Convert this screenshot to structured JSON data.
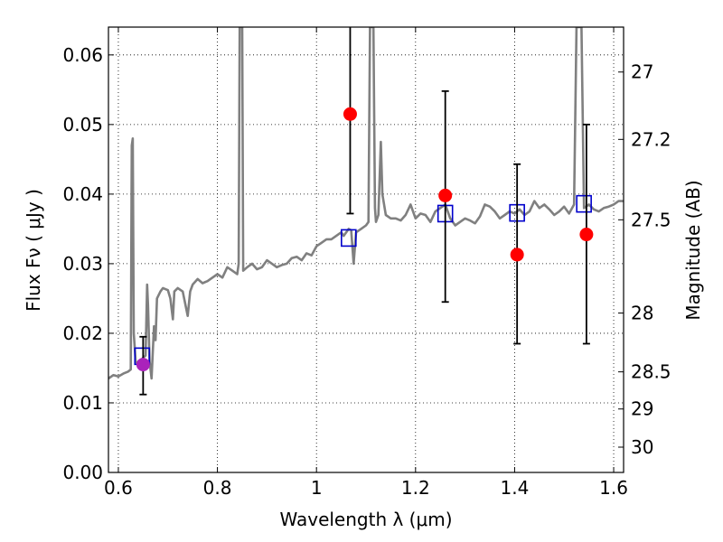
{
  "chart_data": {
    "type": "scatter",
    "xlabel": "Wavelength  λ (μm)",
    "ylabel": "Flux  Fν  ( μJy )",
    "ylabel_right": "Magnitude (AB)",
    "xlim": [
      0.58,
      1.62
    ],
    "ylim": [
      0.0,
      0.064
    ],
    "grid": true,
    "x_ticks": [
      {
        "value": 0.6,
        "label": "0.6"
      },
      {
        "value": 0.8,
        "label": "0.8"
      },
      {
        "value": 1.0,
        "label": "1"
      },
      {
        "value": 1.2,
        "label": "1.2"
      },
      {
        "value": 1.4,
        "label": "1.4"
      },
      {
        "value": 1.6,
        "label": "1.6"
      }
    ],
    "y_ticks": [
      {
        "value": 0.0,
        "label": "0.00"
      },
      {
        "value": 0.01,
        "label": "0.01"
      },
      {
        "value": 0.02,
        "label": "0.02"
      },
      {
        "value": 0.03,
        "label": "0.03"
      },
      {
        "value": 0.04,
        "label": "0.04"
      },
      {
        "value": 0.05,
        "label": "0.05"
      },
      {
        "value": 0.06,
        "label": "0.06"
      }
    ],
    "mag_ticks": [
      {
        "mag": 27,
        "label": "27"
      },
      {
        "mag": 27.2,
        "label": "27.2"
      },
      {
        "mag": 27.5,
        "label": "27.5"
      },
      {
        "mag": 28,
        "label": "28"
      },
      {
        "mag": 28.5,
        "label": "28.5"
      },
      {
        "mag": 29,
        "label": "29"
      },
      {
        "mag": 30,
        "label": "30"
      }
    ],
    "series": [
      {
        "kind": "line",
        "color": "#808080",
        "points": [
          [
            0.58,
            0.0135
          ],
          [
            0.59,
            0.014
          ],
          [
            0.6,
            0.0138
          ],
          [
            0.61,
            0.0142
          ],
          [
            0.62,
            0.0145
          ],
          [
            0.625,
            0.0148
          ],
          [
            0.627,
            0.047
          ],
          [
            0.629,
            0.048
          ],
          [
            0.631,
            0.02
          ],
          [
            0.635,
            0.016
          ],
          [
            0.64,
            0.0155
          ],
          [
            0.645,
            0.016
          ],
          [
            0.65,
            0.0165
          ],
          [
            0.655,
            0.0168
          ],
          [
            0.658,
            0.027
          ],
          [
            0.66,
            0.024
          ],
          [
            0.663,
            0.016
          ],
          [
            0.667,
            0.0135
          ],
          [
            0.672,
            0.021
          ],
          [
            0.675,
            0.019
          ],
          [
            0.678,
            0.025
          ],
          [
            0.685,
            0.026
          ],
          [
            0.69,
            0.0265
          ],
          [
            0.7,
            0.0262
          ],
          [
            0.705,
            0.025
          ],
          [
            0.71,
            0.022
          ],
          [
            0.713,
            0.026
          ],
          [
            0.72,
            0.0265
          ],
          [
            0.73,
            0.026
          ],
          [
            0.74,
            0.0225
          ],
          [
            0.745,
            0.026
          ],
          [
            0.75,
            0.027
          ],
          [
            0.76,
            0.0278
          ],
          [
            0.77,
            0.0272
          ],
          [
            0.78,
            0.0275
          ],
          [
            0.79,
            0.028
          ],
          [
            0.8,
            0.0285
          ],
          [
            0.81,
            0.028
          ],
          [
            0.82,
            0.0295
          ],
          [
            0.83,
            0.029
          ],
          [
            0.84,
            0.0285
          ],
          [
            0.843,
            0.03
          ],
          [
            0.845,
            0.064
          ],
          [
            0.85,
            0.064
          ],
          [
            0.852,
            0.029
          ],
          [
            0.86,
            0.0295
          ],
          [
            0.87,
            0.03
          ],
          [
            0.88,
            0.0292
          ],
          [
            0.89,
            0.0295
          ],
          [
            0.9,
            0.0305
          ],
          [
            0.91,
            0.03
          ],
          [
            0.92,
            0.0295
          ],
          [
            0.93,
            0.0298
          ],
          [
            0.94,
            0.03
          ],
          [
            0.95,
            0.0308
          ],
          [
            0.96,
            0.031
          ],
          [
            0.97,
            0.0305
          ],
          [
            0.98,
            0.0315
          ],
          [
            0.99,
            0.0312
          ],
          [
            1.0,
            0.0325
          ],
          [
            1.01,
            0.033
          ],
          [
            1.02,
            0.0335
          ],
          [
            1.03,
            0.0335
          ],
          [
            1.04,
            0.034
          ],
          [
            1.05,
            0.0345
          ],
          [
            1.055,
            0.034
          ],
          [
            1.06,
            0.0345
          ],
          [
            1.065,
            0.035
          ],
          [
            1.07,
            0.0348
          ],
          [
            1.075,
            0.03
          ],
          [
            1.08,
            0.0345
          ],
          [
            1.09,
            0.035
          ],
          [
            1.1,
            0.0355
          ],
          [
            1.105,
            0.036
          ],
          [
            1.108,
            0.064
          ],
          [
            1.115,
            0.064
          ],
          [
            1.118,
            0.038
          ],
          [
            1.12,
            0.036
          ],
          [
            1.125,
            0.037
          ],
          [
            1.13,
            0.0475
          ],
          [
            1.133,
            0.04
          ],
          [
            1.14,
            0.037
          ],
          [
            1.15,
            0.0365
          ],
          [
            1.16,
            0.0365
          ],
          [
            1.17,
            0.0362
          ],
          [
            1.18,
            0.037
          ],
          [
            1.19,
            0.0385
          ],
          [
            1.2,
            0.0365
          ],
          [
            1.21,
            0.0372
          ],
          [
            1.22,
            0.037
          ],
          [
            1.23,
            0.036
          ],
          [
            1.24,
            0.0375
          ],
          [
            1.25,
            0.038
          ],
          [
            1.26,
            0.0385
          ],
          [
            1.27,
            0.0365
          ],
          [
            1.28,
            0.0355
          ],
          [
            1.29,
            0.036
          ],
          [
            1.3,
            0.0365
          ],
          [
            1.31,
            0.0362
          ],
          [
            1.32,
            0.0358
          ],
          [
            1.33,
            0.0368
          ],
          [
            1.34,
            0.0385
          ],
          [
            1.35,
            0.0382
          ],
          [
            1.36,
            0.0375
          ],
          [
            1.37,
            0.0365
          ],
          [
            1.38,
            0.037
          ],
          [
            1.39,
            0.0375
          ],
          [
            1.4,
            0.0372
          ],
          [
            1.41,
            0.0378
          ],
          [
            1.42,
            0.037
          ],
          [
            1.43,
            0.0375
          ],
          [
            1.44,
            0.039
          ],
          [
            1.45,
            0.038
          ],
          [
            1.46,
            0.0385
          ],
          [
            1.47,
            0.0378
          ],
          [
            1.48,
            0.037
          ],
          [
            1.49,
            0.0375
          ],
          [
            1.5,
            0.0382
          ],
          [
            1.51,
            0.0372
          ],
          [
            1.52,
            0.0385
          ],
          [
            1.525,
            0.064
          ],
          [
            1.535,
            0.064
          ],
          [
            1.54,
            0.038
          ],
          [
            1.55,
            0.0385
          ],
          [
            1.56,
            0.0378
          ],
          [
            1.57,
            0.0375
          ],
          [
            1.58,
            0.038
          ],
          [
            1.59,
            0.0382
          ],
          [
            1.6,
            0.0385
          ],
          [
            1.61,
            0.039
          ],
          [
            1.62,
            0.039
          ]
        ]
      },
      {
        "kind": "markers",
        "marker": "square",
        "color": "#0000cc",
        "points": [
          [
            0.648,
            0.0167
          ],
          [
            1.065,
            0.0337
          ],
          [
            1.26,
            0.0372
          ],
          [
            1.405,
            0.0373
          ],
          [
            1.54,
            0.0386
          ]
        ]
      },
      {
        "kind": "errorbar",
        "marker": "circle",
        "color": "#ff0000",
        "points": [
          {
            "x": 1.068,
            "y": 0.0515,
            "ylo": 0.0372,
            "yhi": 0.064
          },
          {
            "x": 1.26,
            "y": 0.0398,
            "ylo": 0.0245,
            "yhi": 0.0548
          },
          {
            "x": 1.405,
            "y": 0.0313,
            "ylo": 0.0185,
            "yhi": 0.0443
          },
          {
            "x": 1.545,
            "y": 0.0342,
            "ylo": 0.0185,
            "yhi": 0.05
          }
        ]
      },
      {
        "kind": "errorbar",
        "marker": "circle",
        "color": "#aa22bb",
        "points": [
          {
            "x": 0.65,
            "y": 0.0155,
            "ylo": 0.0112,
            "yhi": 0.0195
          }
        ]
      }
    ]
  }
}
